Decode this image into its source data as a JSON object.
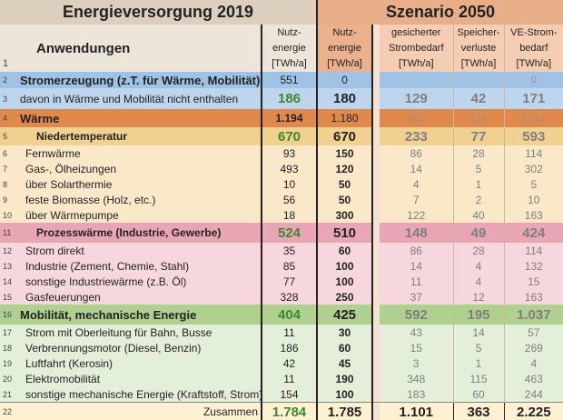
{
  "title_left": "Energieversorgung 2019",
  "title_right": "Szenario 2050",
  "header": {
    "row_num": "1",
    "label": "Anwendungen",
    "col_2019": [
      "Nutz-",
      "energie",
      "[TWh/a]"
    ],
    "col_2050": [
      "Nutz-",
      "energie",
      "[TWh/a]"
    ],
    "col_ges": [
      "gesicherter",
      "Strombedarf",
      "[TWh/a]"
    ],
    "col_spei": [
      "Speicher-",
      "verluste",
      "[TWh/a]"
    ],
    "col_ve": [
      "VE-Strom-",
      "bedarf",
      "[TWh/a]"
    ]
  },
  "colors": {
    "green": "#3c8a2f",
    "gray": "#7f7f7f",
    "blue": "#9fc2e5",
    "orange": "#e0894c",
    "pink": "#e8a6b5",
    "lightgreen": "#afd08e"
  },
  "rows": [
    {
      "num": "2",
      "label": "Stromerzeugung (z.T. für Wärme, Mobilität)",
      "v2019": "551",
      "v2050": "0",
      "ges": "",
      "spei": "",
      "ve": "0",
      "style": "r2"
    },
    {
      "num": "3",
      "label": "davon in Wärme und Mobilität nicht enthalten",
      "v2019": "186",
      "v2050": "180",
      "ges": "129",
      "spei": "42",
      "ve": "171",
      "style": "r3"
    },
    {
      "num": "4",
      "label": "Wärme",
      "v2019": "1.194",
      "v2050": "1.180",
      "ges": "381",
      "spei": "126",
      "ve": "1.017",
      "style": "r4"
    },
    {
      "num": "5",
      "label": "Niedertemperatur",
      "v2019": "670",
      "v2050": "670",
      "ges": "233",
      "spei": "77",
      "ve": "593",
      "style": "r5"
    },
    {
      "num": "6",
      "label": "Fernwärme",
      "v2019": "93",
      "v2050": "150",
      "ges": "86",
      "spei": "28",
      "ve": "114",
      "style": "heat"
    },
    {
      "num": "7",
      "label": "Gas-, Ölheizungen",
      "v2019": "493",
      "v2050": "120",
      "ges": "14",
      "spei": "5",
      "ve": "302",
      "style": "heat"
    },
    {
      "num": "8",
      "label": "über Solarthermie",
      "v2019": "10",
      "v2050": "50",
      "ges": "4",
      "spei": "1",
      "ve": "5",
      "style": "heat"
    },
    {
      "num": "9",
      "label": "feste Biomasse (Holz, etc.)",
      "v2019": "56",
      "v2050": "50",
      "ges": "7",
      "spei": "2",
      "ve": "10",
      "style": "heat"
    },
    {
      "num": "10",
      "label": "über Wärmepumpe",
      "v2019": "18",
      "v2050": "300",
      "ges": "122",
      "spei": "40",
      "ve": "163",
      "style": "heat"
    },
    {
      "num": "11",
      "label": "Prozesswärme (Industrie, Gewerbe)",
      "v2019": "524",
      "v2050": "510",
      "ges": "148",
      "spei": "49",
      "ve": "424",
      "style": "r11"
    },
    {
      "num": "12",
      "label": "Strom direkt",
      "v2019": "35",
      "v2050": "60",
      "ges": "86",
      "spei": "28",
      "ve": "114",
      "style": "proc"
    },
    {
      "num": "13",
      "label": "Industrie (Zement, Chemie, Stahl)",
      "v2019": "85",
      "v2050": "100",
      "ges": "14",
      "spei": "4",
      "ve": "132",
      "style": "proc"
    },
    {
      "num": "14",
      "label": "sonstige Industriewärme (z.B. Öl)",
      "v2019": "77",
      "v2050": "100",
      "ges": "11",
      "spei": "4",
      "ve": "15",
      "style": "proc"
    },
    {
      "num": "15",
      "label": "Gasfeuerungen",
      "v2019": "328",
      "v2050": "250",
      "ges": "37",
      "spei": "12",
      "ve": "163",
      "style": "proc"
    },
    {
      "num": "16",
      "label": "Mobilität, mechanische Energie",
      "v2019": "404",
      "v2050": "425",
      "ges": "592",
      "spei": "195",
      "ve": "1.037",
      "style": "r16"
    },
    {
      "num": "17",
      "label": "Strom mit Oberleitung für Bahn, Busse",
      "v2019": "11",
      "v2050": "30",
      "ges": "43",
      "spei": "14",
      "ve": "57",
      "style": "mob"
    },
    {
      "num": "18",
      "label": "Verbrennungsmotor (Diesel, Benzin)",
      "v2019": "186",
      "v2050": "60",
      "ges": "15",
      "spei": "5",
      "ve": "269",
      "style": "mob"
    },
    {
      "num": "19",
      "label": "Luftfahrt (Kerosin)",
      "v2019": "42",
      "v2050": "45",
      "ges": "3",
      "spei": "1",
      "ve": "4",
      "style": "mob"
    },
    {
      "num": "20",
      "label": "Elektromobilität",
      "v2019": "11",
      "v2050": "190",
      "ges": "348",
      "spei": "115",
      "ve": "463",
      "style": "mob"
    },
    {
      "num": "21",
      "label": "sonstige mechanische Energie (Kraftstoff, Strom)",
      "v2019": "154",
      "v2050": "100",
      "ges": "183",
      "spei": "60",
      "ve": "244",
      "style": "mob"
    },
    {
      "num": "22",
      "label": "Zusammen",
      "v2019": "1.784",
      "v2050": "1.785",
      "ges": "1.101",
      "spei": "363",
      "ve": "2.225",
      "style": "sum"
    }
  ]
}
